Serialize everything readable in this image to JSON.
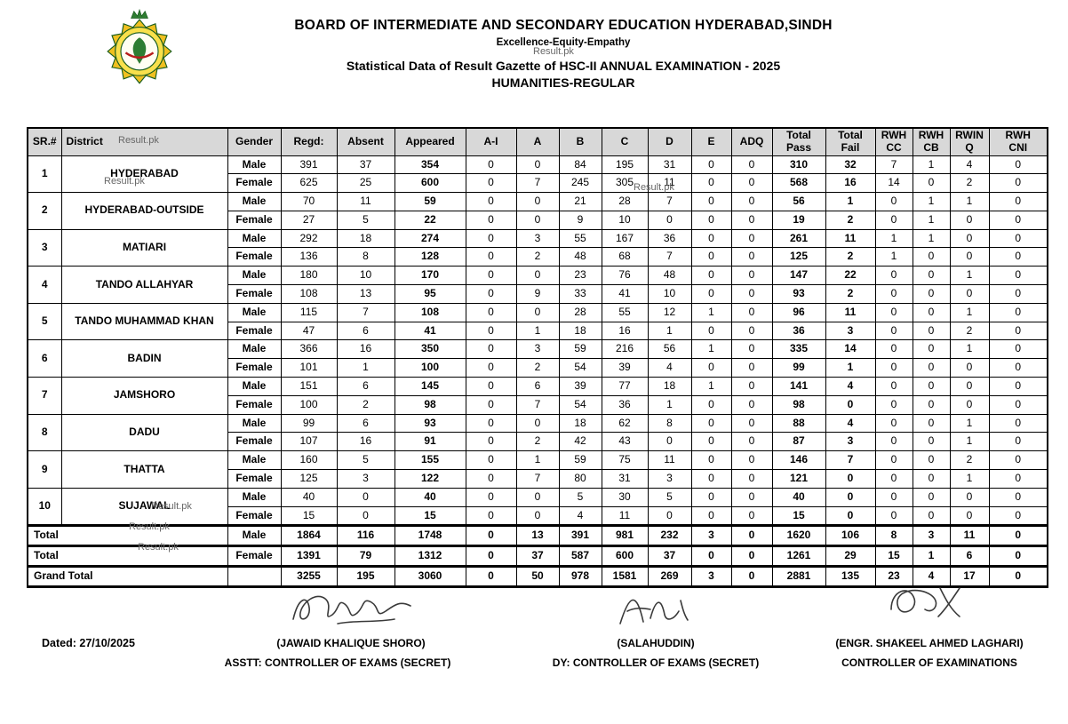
{
  "header": {
    "board_title": "BOARD OF INTERMEDIATE AND SECONDARY EDUCATION HYDERABAD,SINDH",
    "motto": "Excellence-Equity-Empathy",
    "watermark": "Result.pk",
    "subtitle": "Statistical Data of Result Gazette of HSC-II ANNUAL EXAMINATION - 2025",
    "group": "HUMANITIES-REGULAR"
  },
  "colors": {
    "table_header_bg": "#d8d8d8",
    "border": "#000000",
    "watermark_text": "#676767",
    "logo_green": "#2e7d32",
    "logo_yellow": "#f0c020"
  },
  "table": {
    "columns": [
      "SR.#",
      "District",
      "Gender",
      "Regd:",
      "Absent",
      "Appeared",
      "A-I",
      "A",
      "B",
      "C",
      "D",
      "E",
      "ADQ",
      "Total\nPass",
      "Total\nFail",
      "RWH\nCC",
      "RWH\nCB",
      "RWIN\nQ",
      "RWH\nCNI"
    ],
    "male_label": "Male",
    "female_label": "Female",
    "districts": [
      {
        "sr": "1",
        "district": "HYDERABAD",
        "male": [
          391,
          37,
          354,
          0,
          0,
          84,
          195,
          31,
          0,
          0,
          310,
          32,
          7,
          1,
          4,
          0
        ],
        "female": [
          625,
          25,
          600,
          0,
          7,
          245,
          305,
          11,
          0,
          0,
          568,
          16,
          14,
          0,
          2,
          0
        ]
      },
      {
        "sr": "2",
        "district": "HYDERABAD-OUTSIDE",
        "male": [
          70,
          11,
          59,
          0,
          0,
          21,
          28,
          7,
          0,
          0,
          56,
          1,
          0,
          1,
          1,
          0
        ],
        "female": [
          27,
          5,
          22,
          0,
          0,
          9,
          10,
          0,
          0,
          0,
          19,
          2,
          0,
          1,
          0,
          0
        ]
      },
      {
        "sr": "3",
        "district": "MATIARI",
        "male": [
          292,
          18,
          274,
          0,
          3,
          55,
          167,
          36,
          0,
          0,
          261,
          11,
          1,
          1,
          0,
          0
        ],
        "female": [
          136,
          8,
          128,
          0,
          2,
          48,
          68,
          7,
          0,
          0,
          125,
          2,
          1,
          0,
          0,
          0
        ]
      },
      {
        "sr": "4",
        "district": "TANDO ALLAHYAR",
        "male": [
          180,
          10,
          170,
          0,
          0,
          23,
          76,
          48,
          0,
          0,
          147,
          22,
          0,
          0,
          1,
          0
        ],
        "female": [
          108,
          13,
          95,
          0,
          9,
          33,
          41,
          10,
          0,
          0,
          93,
          2,
          0,
          0,
          0,
          0
        ]
      },
      {
        "sr": "5",
        "district": "TANDO MUHAMMAD KHAN",
        "male": [
          115,
          7,
          108,
          0,
          0,
          28,
          55,
          12,
          1,
          0,
          96,
          11,
          0,
          0,
          1,
          0
        ],
        "female": [
          47,
          6,
          41,
          0,
          1,
          18,
          16,
          1,
          0,
          0,
          36,
          3,
          0,
          0,
          2,
          0
        ]
      },
      {
        "sr": "6",
        "district": "BADIN",
        "male": [
          366,
          16,
          350,
          0,
          3,
          59,
          216,
          56,
          1,
          0,
          335,
          14,
          0,
          0,
          1,
          0
        ],
        "female": [
          101,
          1,
          100,
          0,
          2,
          54,
          39,
          4,
          0,
          0,
          99,
          1,
          0,
          0,
          0,
          0
        ]
      },
      {
        "sr": "7",
        "district": "JAMSHORO",
        "male": [
          151,
          6,
          145,
          0,
          6,
          39,
          77,
          18,
          1,
          0,
          141,
          4,
          0,
          0,
          0,
          0
        ],
        "female": [
          100,
          2,
          98,
          0,
          7,
          54,
          36,
          1,
          0,
          0,
          98,
          0,
          0,
          0,
          0,
          0
        ]
      },
      {
        "sr": "8",
        "district": "DADU",
        "male": [
          99,
          6,
          93,
          0,
          0,
          18,
          62,
          8,
          0,
          0,
          88,
          4,
          0,
          0,
          1,
          0
        ],
        "female": [
          107,
          16,
          91,
          0,
          2,
          42,
          43,
          0,
          0,
          0,
          87,
          3,
          0,
          0,
          1,
          0
        ]
      },
      {
        "sr": "9",
        "district": "THATTA",
        "male": [
          160,
          5,
          155,
          0,
          1,
          59,
          75,
          11,
          0,
          0,
          146,
          7,
          0,
          0,
          2,
          0
        ],
        "female": [
          125,
          3,
          122,
          0,
          7,
          80,
          31,
          3,
          0,
          0,
          121,
          0,
          0,
          0,
          1,
          0
        ]
      },
      {
        "sr": "10",
        "district": "SUJAWAL",
        "male": [
          40,
          0,
          40,
          0,
          0,
          5,
          30,
          5,
          0,
          0,
          40,
          0,
          0,
          0,
          0,
          0
        ],
        "female": [
          15,
          0,
          15,
          0,
          0,
          4,
          11,
          0,
          0,
          0,
          15,
          0,
          0,
          0,
          0,
          0
        ]
      }
    ],
    "totals": [
      {
        "label": "Total",
        "gender": "Male",
        "values": [
          1864,
          116,
          1748,
          0,
          13,
          391,
          981,
          232,
          3,
          0,
          1620,
          106,
          8,
          3,
          11,
          0
        ]
      },
      {
        "label": "Total",
        "gender": "Female",
        "values": [
          1391,
          79,
          1312,
          0,
          37,
          587,
          600,
          37,
          0,
          0,
          1261,
          29,
          15,
          1,
          6,
          0
        ]
      },
      {
        "label": "Grand Total",
        "gender": "",
        "values": [
          3255,
          195,
          3060,
          0,
          50,
          978,
          1581,
          269,
          3,
          0,
          2881,
          135,
          23,
          4,
          17,
          0
        ]
      }
    ]
  },
  "footer": {
    "dated": "Dated: 27/10/2025",
    "signatories": [
      {
        "name": "(JAWAID KHALIQUE SHORO)",
        "title": "ASSTT: CONTROLLER OF EXAMS (SECRET)"
      },
      {
        "name": "(SALAHUDDIN)",
        "title": "DY: CONTROLLER OF EXAMS (SECRET)"
      },
      {
        "name": "(ENGR. SHAKEEL AHMED LAGHARI)",
        "title": "CONTROLLER OF EXAMINATIONS"
      }
    ]
  }
}
